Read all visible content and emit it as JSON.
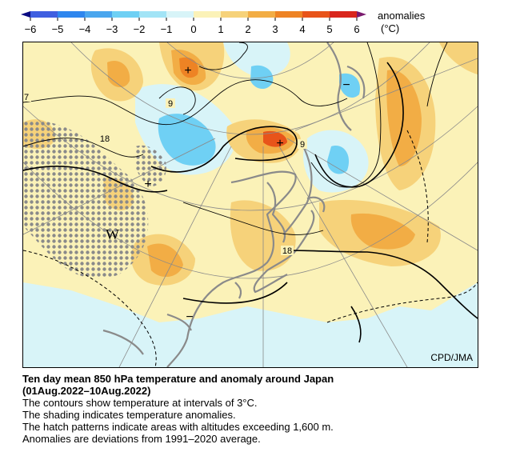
{
  "legend": {
    "title": "anomalies",
    "unit": "(°C)",
    "ticks": [
      "−6",
      "−5",
      "−4",
      "−3",
      "−2",
      "−1",
      "0",
      "1",
      "2",
      "3",
      "4",
      "5",
      "6"
    ],
    "colors": [
      "#0a0a82",
      "#3f5fe0",
      "#4aa6ee",
      "#6fd0f4",
      "#c4eef8",
      "#e6f6f8",
      "#fbf2b8",
      "#f6d27a",
      "#f2ad45",
      "#ee8324",
      "#e8541a",
      "#d9261c",
      "#7a1a6e"
    ]
  },
  "map": {
    "contour_labels": [
      "18",
      "9",
      "9",
      "18",
      "7"
    ],
    "marker_W": "W",
    "marker_plus": "+",
    "marker_minus": "−",
    "credit": "CPD/JMA"
  },
  "caption": {
    "title_line1": "Ten day mean 850 hPa temperature and anomaly around Japan",
    "title_line2": "(01Aug.2022–10Aug.2022)",
    "line1": "The contours show temperature at intervals of 3°C.",
    "line2": "The shading indicates temperature anomalies.",
    "line3": "The hatch patterns indicate areas with altitudes exceeding 1,600 m.",
    "line4": "Anomalies are deviations from 1991–2020 average."
  }
}
